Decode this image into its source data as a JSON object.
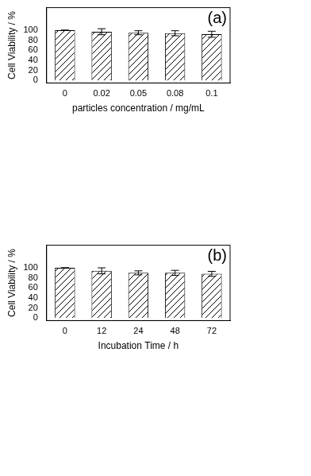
{
  "chart_data": [
    {
      "type": "bar",
      "annotations": [
        "(a)"
      ],
      "x_label": "particles concentration / mg/mL",
      "y_label": "Cell Viability / %",
      "categories": [
        "0",
        "0.02",
        "0.05",
        "0.08",
        "0.1"
      ],
      "values": [
        100,
        97,
        95,
        94,
        92
      ],
      "errors": [
        0,
        6,
        4,
        5,
        6
      ],
      "color": "#000000",
      "ylim": [
        -5,
        145
      ],
      "yticks": [
        0,
        20,
        40,
        60,
        80,
        100
      ],
      "grid": false
    },
    {
      "type": "bar",
      "annotations": [
        "(b)"
      ],
      "x_label": "Incubation Time / h",
      "y_label": "Cell Viability / %",
      "categories": [
        "0",
        "12",
        "24",
        "48",
        "72"
      ],
      "values": [
        100,
        94,
        90,
        90,
        88
      ],
      "errors": [
        0,
        6,
        4,
        5,
        5
      ],
      "color": "#000000",
      "ylim": [
        -5,
        145
      ],
      "yticks": [
        0,
        20,
        40,
        60,
        80,
        100
      ],
      "grid": false
    }
  ]
}
